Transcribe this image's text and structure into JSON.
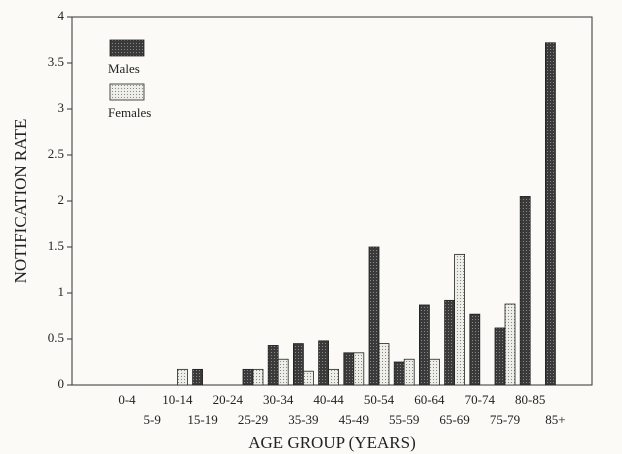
{
  "chart_data": {
    "type": "bar",
    "xlabel": "AGE GROUP (YEARS)",
    "ylabel": "NOTIFICATION RATE",
    "categories": [
      "0-4",
      "5-9",
      "10-14",
      "15-19",
      "20-24",
      "25-29",
      "30-34",
      "35-39",
      "40-44",
      "45-49",
      "50-54",
      "55-59",
      "60-64",
      "65-69",
      "70-74",
      "75-79",
      "80-85",
      "85+"
    ],
    "series": [
      {
        "name": "Males",
        "color": "#3a3a3a",
        "values": [
          0,
          0,
          0,
          0.17,
          0,
          0.17,
          0.43,
          0.45,
          0.48,
          0.35,
          1.5,
          0.25,
          0.87,
          0.92,
          0.77,
          0.62,
          2.05,
          3.72
        ]
      },
      {
        "name": "Females",
        "color": "#dcdcd6",
        "values": [
          0,
          0,
          0.17,
          0,
          0,
          0.17,
          0.28,
          0.15,
          0.17,
          0.35,
          0.45,
          0.28,
          0.28,
          1.42,
          0,
          0.88,
          0,
          0
        ]
      }
    ],
    "ylim": [
      0,
      4
    ],
    "yticks": [
      0,
      0.5,
      1,
      1.5,
      2,
      2.5,
      3,
      3.5,
      4
    ],
    "legend": "upper left"
  }
}
